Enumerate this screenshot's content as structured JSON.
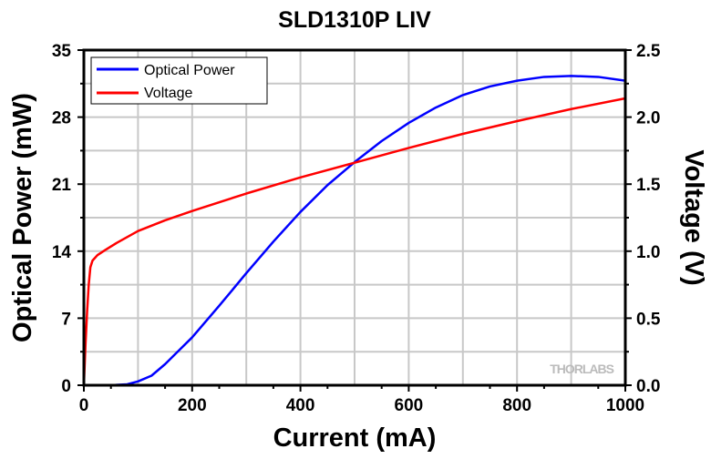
{
  "chart_data": {
    "type": "line",
    "title": "SLD1310P LIV",
    "xlabel": "Current (mA)",
    "ylabel": "Optical Power (mW)",
    "y2label": "Voltage (V)",
    "xlim": [
      0,
      1000
    ],
    "ylim": [
      0,
      35
    ],
    "y2lim": [
      0,
      2.5
    ],
    "xticks": [
      0,
      200,
      400,
      600,
      800,
      1000
    ],
    "yticks": [
      0,
      7,
      14,
      21,
      28,
      35
    ],
    "y2ticks": [
      "0.0",
      "0.5",
      "1.0",
      "1.5",
      "2.0",
      "2.5"
    ],
    "grid": true,
    "legend_position": "top-left",
    "watermark": "THORLABS",
    "series": [
      {
        "name": "Optical Power",
        "axis": "left",
        "color": "#0000ff",
        "x": [
          0,
          50,
          80,
          100,
          125,
          150,
          175,
          200,
          250,
          300,
          350,
          400,
          450,
          500,
          550,
          600,
          650,
          700,
          750,
          800,
          850,
          900,
          950,
          1000
        ],
        "y": [
          0,
          0,
          0.1,
          0.4,
          1.0,
          2.2,
          3.6,
          5.0,
          8.3,
          11.7,
          15.0,
          18.1,
          20.9,
          23.3,
          25.5,
          27.4,
          29.0,
          30.3,
          31.2,
          31.8,
          32.2,
          32.3,
          32.2,
          31.8
        ]
      },
      {
        "name": "Voltage",
        "axis": "right",
        "color": "#ff0000",
        "x": [
          0,
          3,
          6,
          9,
          12,
          16,
          25,
          40,
          60,
          100,
          150,
          200,
          300,
          400,
          500,
          600,
          700,
          800,
          900,
          1000
        ],
        "y": [
          0,
          0.3,
          0.55,
          0.75,
          0.88,
          0.93,
          0.97,
          1.01,
          1.06,
          1.15,
          1.23,
          1.3,
          1.43,
          1.55,
          1.66,
          1.77,
          1.875,
          1.97,
          2.06,
          2.14
        ]
      }
    ]
  }
}
